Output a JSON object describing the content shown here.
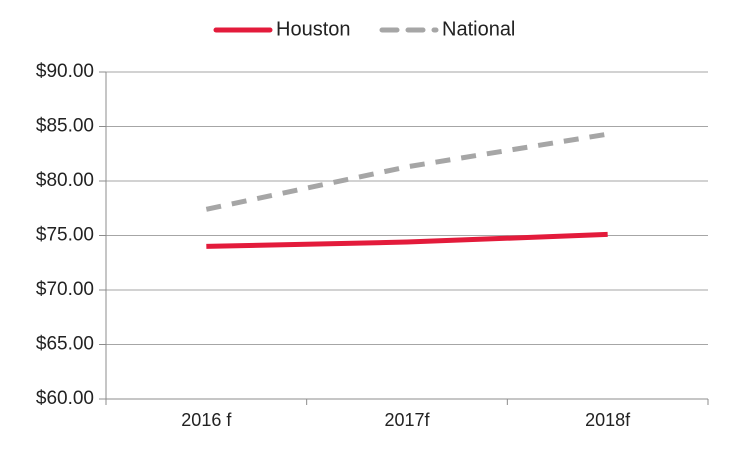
{
  "chart_data": {
    "type": "line",
    "categories": [
      "2016 f",
      "2017f",
      "2018f"
    ],
    "series": [
      {
        "name": "Houston",
        "values": [
          74.0,
          74.4,
          75.1
        ],
        "color": "#e31b3b",
        "style": "solid"
      },
      {
        "name": "National",
        "values": [
          77.4,
          81.3,
          84.3
        ],
        "color": "#a6a6a6",
        "style": "dashed"
      }
    ],
    "y_ticks": [
      "$60.00",
      "$65.00",
      "$70.00",
      "$75.00",
      "$80.00",
      "$85.00",
      "$90.00"
    ],
    "ylim": [
      60,
      90
    ],
    "y_step": 5,
    "grid": true,
    "legend_position": "top"
  }
}
